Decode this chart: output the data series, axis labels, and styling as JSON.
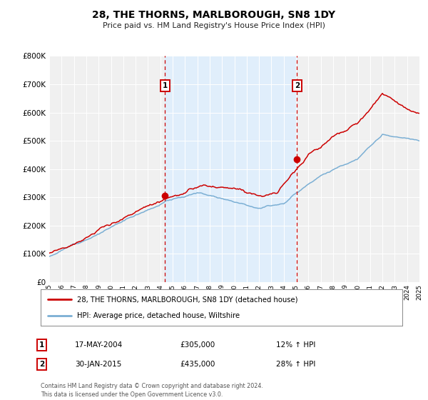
{
  "title": "28, THE THORNS, MARLBOROUGH, SN8 1DY",
  "subtitle": "Price paid vs. HM Land Registry's House Price Index (HPI)",
  "legend_label_red": "28, THE THORNS, MARLBOROUGH, SN8 1DY (detached house)",
  "legend_label_blue": "HPI: Average price, detached house, Wiltshire",
  "sale1_date": "17-MAY-2004",
  "sale1_price": "£305,000",
  "sale1_hpi": "12% ↑ HPI",
  "sale2_date": "30-JAN-2015",
  "sale2_price": "£435,000",
  "sale2_hpi": "28% ↑ HPI",
  "footer": "Contains HM Land Registry data © Crown copyright and database right 2024.\nThis data is licensed under the Open Government Licence v3.0.",
  "sale1_year": 2004.38,
  "sale1_value": 305000,
  "sale2_year": 2015.08,
  "sale2_value": 435000,
  "color_red": "#cc0000",
  "color_blue": "#7bafd4",
  "color_vline": "#cc0000",
  "color_shade": "#ddeeff",
  "ylim_max": 800000,
  "ylim_min": 0,
  "xlim_min": 1995,
  "xlim_max": 2025,
  "background_color": "#ffffff",
  "plot_bg_color": "#f0f0f0"
}
